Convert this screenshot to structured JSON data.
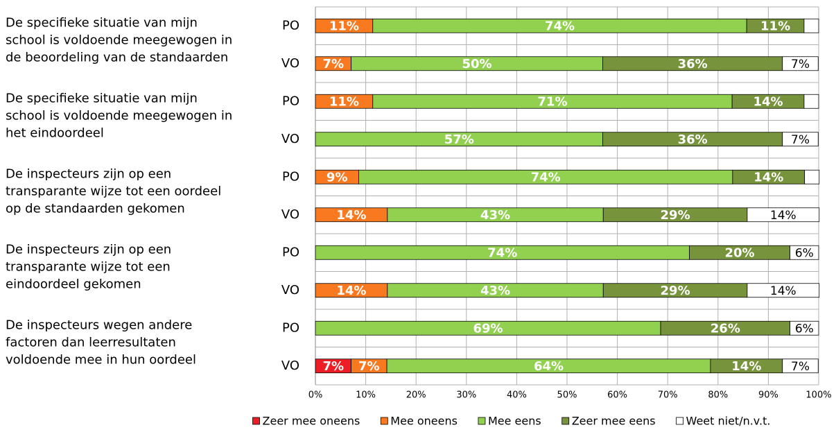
{
  "chart_data": {
    "type": "stacked-bar-horizontal",
    "group_labels": [
      [
        "De specifieke situatie van mijn",
        "school is voldoende meegewogen in",
        "de beoordeling van de standaarden"
      ],
      [
        "De specifieke situatie van mijn",
        "school is voldoende meegewogen in",
        "het eindoordeel"
      ],
      [
        "De inspecteurs zijn op een",
        "transparante wijze tot een oordeel",
        "op de standaarden gekomen"
      ],
      [
        "De inspecteurs zijn op een",
        "transparante wijze tot een",
        "eindoordeel gekomen"
      ],
      [
        "De inspecteurs wegen andere",
        "factoren dan leerresultaten",
        "voldoende mee in hun oordeel"
      ]
    ],
    "categories": [
      "PO",
      "VO",
      "PO",
      "VO",
      "PO",
      "VO",
      "PO",
      "VO",
      "PO",
      "VO"
    ],
    "series": [
      {
        "name": "Zeer mee oneens",
        "color": "#ee1c25",
        "values": [
          null,
          null,
          null,
          null,
          null,
          null,
          null,
          null,
          null,
          7.1
        ],
        "value_labels": [
          null,
          null,
          null,
          null,
          null,
          null,
          null,
          null,
          null,
          "7%"
        ]
      },
      {
        "name": "Mee oneens",
        "color": "#f8791f",
        "values": [
          11.4,
          7.1,
          11.4,
          null,
          8.6,
          14.3,
          null,
          14.3,
          null,
          7.1
        ],
        "value_labels": [
          "11%",
          "7%",
          "11%",
          null,
          "9%",
          "14%",
          null,
          "14%",
          null,
          "7%"
        ]
      },
      {
        "name": "Mee eens",
        "color": "#92d050",
        "values": [
          74.3,
          50,
          71.4,
          57.1,
          74.3,
          42.9,
          74.3,
          42.9,
          68.6,
          64.3
        ],
        "value_labels": [
          "74%",
          "50%",
          "71%",
          "57%",
          "74%",
          "43%",
          "74%",
          "43%",
          "69%",
          "64%"
        ]
      },
      {
        "name": "Zeer mee eens",
        "color": "#77933c",
        "values": [
          11.4,
          35.7,
          14.3,
          35.7,
          14.3,
          28.6,
          20,
          28.6,
          25.7,
          14.3
        ],
        "value_labels": [
          "11%",
          "36%",
          "14%",
          "36%",
          "14%",
          "29%",
          "20%",
          "29%",
          "26%",
          "14%"
        ]
      },
      {
        "name": "Weet niet/n.v.t.",
        "color": "#ffffff",
        "values": [
          2.9,
          7.1,
          2.9,
          7.1,
          2.9,
          14.3,
          5.7,
          14.3,
          5.7,
          7.1
        ],
        "value_labels": [
          null,
          "7%",
          null,
          "7%",
          null,
          "14%",
          "6%",
          "14%",
          "6%",
          "7%"
        ]
      }
    ],
    "xlim": [
      0,
      100
    ],
    "xticks": [
      {
        "value": 0,
        "label": "0%"
      },
      {
        "value": 10,
        "label": "10%"
      },
      {
        "value": 20,
        "label": "20%"
      },
      {
        "value": 30,
        "label": "30%"
      },
      {
        "value": 40,
        "label": "40%"
      },
      {
        "value": 50,
        "label": "50%"
      },
      {
        "value": 60,
        "label": "60%"
      },
      {
        "value": 70,
        "label": "70%"
      },
      {
        "value": 80,
        "label": "80%"
      },
      {
        "value": 90,
        "label": "90%"
      },
      {
        "value": 100,
        "label": "100%"
      }
    ],
    "grid": true,
    "legend": "bottom"
  }
}
